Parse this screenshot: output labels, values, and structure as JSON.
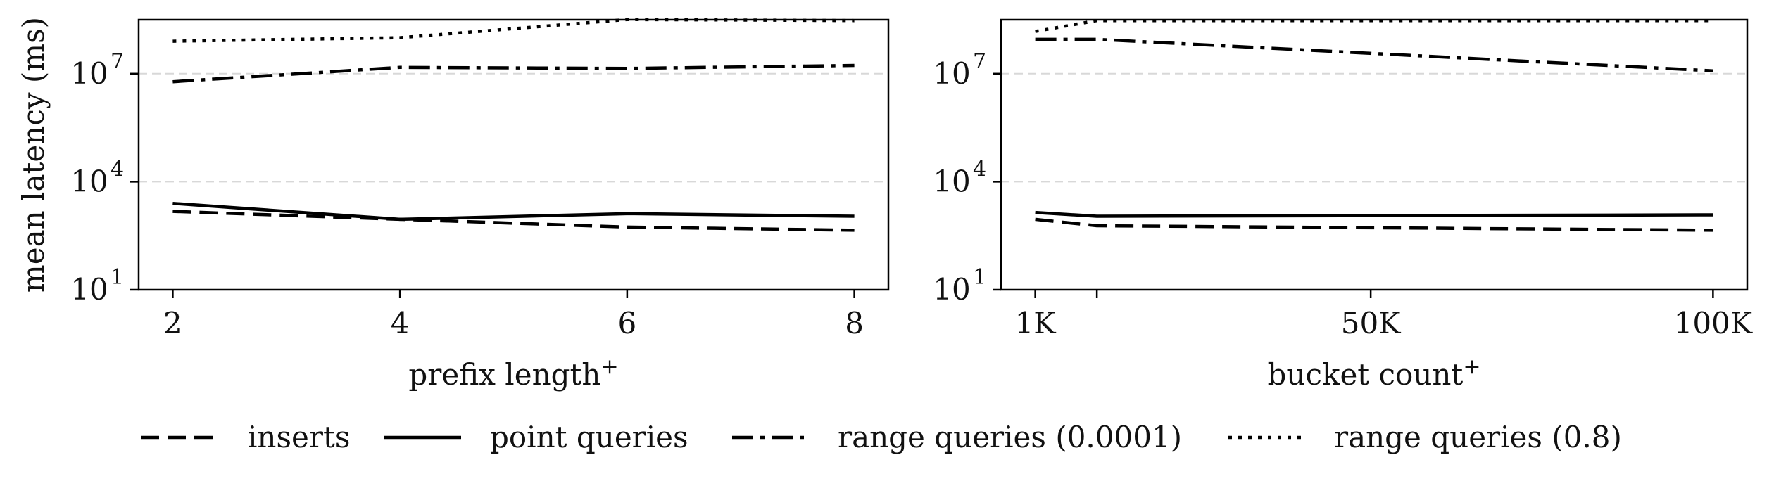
{
  "ylabel": "mean latency (ms)",
  "legend": {
    "entries": [
      {
        "name": "inserts",
        "dash": "dashed"
      },
      {
        "name": "point queries",
        "dash": "solid"
      },
      {
        "name": "range queries (0.0001)",
        "dash": "dashdot"
      },
      {
        "name": "range queries (0.8)",
        "dash": "dotted"
      }
    ]
  },
  "chart_data": [
    {
      "type": "line",
      "xlabel": "prefix length",
      "xlabel_sup": "+",
      "x": [
        2,
        4,
        6,
        8
      ],
      "xticks": [
        2,
        4,
        6,
        8
      ],
      "xtick_labels": [
        "2",
        "4",
        "6",
        "8"
      ],
      "xlim": [
        1.7,
        8.3
      ],
      "yscale": "log",
      "ylim_exp": [
        1,
        8.5
      ],
      "yticks": [
        {
          "base": "10",
          "exp": "1"
        },
        {
          "base": "10",
          "exp": "4"
        },
        {
          "base": "10",
          "exp": "7"
        }
      ],
      "ytick_values": [
        10,
        10000,
        10000000
      ],
      "grid_y": true,
      "series": [
        {
          "name": "inserts",
          "values": [
            1500,
            900,
            550,
            450
          ]
        },
        {
          "name": "point queries",
          "values": [
            2500,
            900,
            1300,
            1100
          ]
        },
        {
          "name": "range queries (0.0001)",
          "values": [
            6000000,
            15000000,
            14000000,
            17000000
          ]
        },
        {
          "name": "range queries (0.8)",
          "values": [
            80000000,
            100000000,
            320000000,
            300000000
          ]
        }
      ]
    },
    {
      "type": "line",
      "xlabel": "bucket count",
      "xlabel_sup": "+",
      "x": [
        1000,
        10000,
        100000
      ],
      "xticks": [
        1000,
        10000,
        50000,
        100000
      ],
      "xtick_labels": [
        "1K",
        "",
        "50K",
        "100K"
      ],
      "xlim": [
        -4000,
        105000
      ],
      "yscale": "log",
      "ylim_exp": [
        1,
        8.5
      ],
      "yticks": [
        {
          "base": "10",
          "exp": "1"
        },
        {
          "base": "10",
          "exp": "4"
        },
        {
          "base": "10",
          "exp": "7"
        }
      ],
      "ytick_values": [
        10,
        10000,
        10000000
      ],
      "grid_y": true,
      "series": [
        {
          "name": "inserts",
          "values": [
            900,
            600,
            450
          ]
        },
        {
          "name": "point queries",
          "values": [
            1400,
            1100,
            1200
          ]
        },
        {
          "name": "range queries (0.0001)",
          "values": [
            90000000,
            90000000,
            12000000
          ]
        },
        {
          "name": "range queries (0.8)",
          "values": [
            150000000,
            300000000,
            300000000
          ]
        }
      ]
    }
  ]
}
